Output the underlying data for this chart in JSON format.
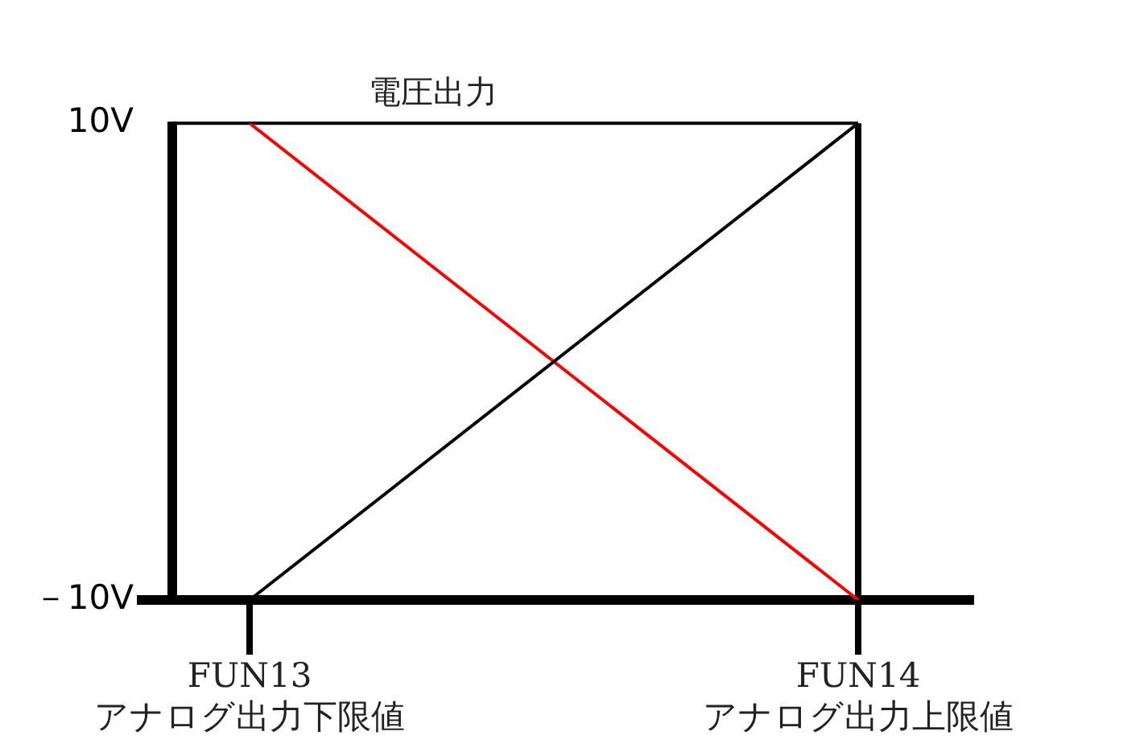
{
  "chart_data": {
    "type": "line",
    "title": "電圧出力",
    "categories": [
      "FUN13\nアナログ出力下限値",
      "FUN14\nアナログ出力上限値"
    ],
    "series": [
      {
        "color": "#000000",
        "values": [
          -10,
          10
        ]
      },
      {
        "color": "#ff0000",
        "values": [
          10,
          -10
        ]
      }
    ],
    "ylim": [
      -10,
      10
    ],
    "yticks": [
      {
        "value": 10,
        "label": "10V"
      },
      {
        "value": -10,
        "label": "－10V"
      }
    ],
    "legend": false,
    "marker": "none",
    "line_style": "solid"
  }
}
